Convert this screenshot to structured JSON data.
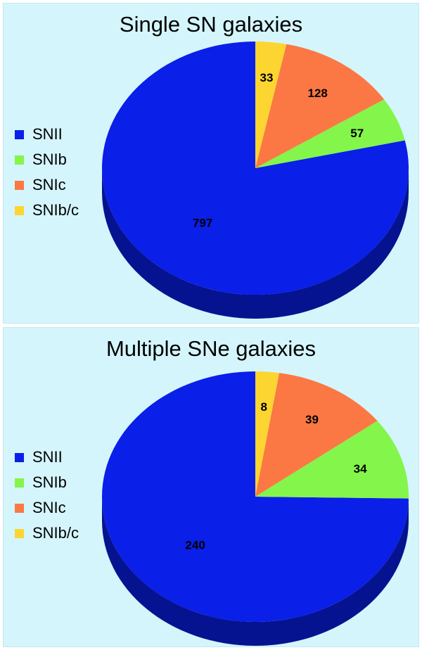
{
  "chart_data": [
    {
      "type": "pie",
      "title": "Single SN galaxies",
      "categories": [
        "SNII",
        "SNIb",
        "SNIc",
        "SNIb/c"
      ],
      "values": [
        797,
        57,
        128,
        33
      ],
      "colors": [
        "#0a1fe8",
        "#84f54a",
        "#fb7844",
        "#fdd530"
      ],
      "legend_position": "left"
    },
    {
      "type": "pie",
      "title": "Multiple SNe galaxies",
      "categories": [
        "SNII",
        "SNIb",
        "SNIc",
        "SNIb/c"
      ],
      "values": [
        240,
        34,
        39,
        8
      ],
      "colors": [
        "#0a1fe8",
        "#84f54a",
        "#fb7844",
        "#fdd530"
      ],
      "legend_position": "left"
    }
  ]
}
